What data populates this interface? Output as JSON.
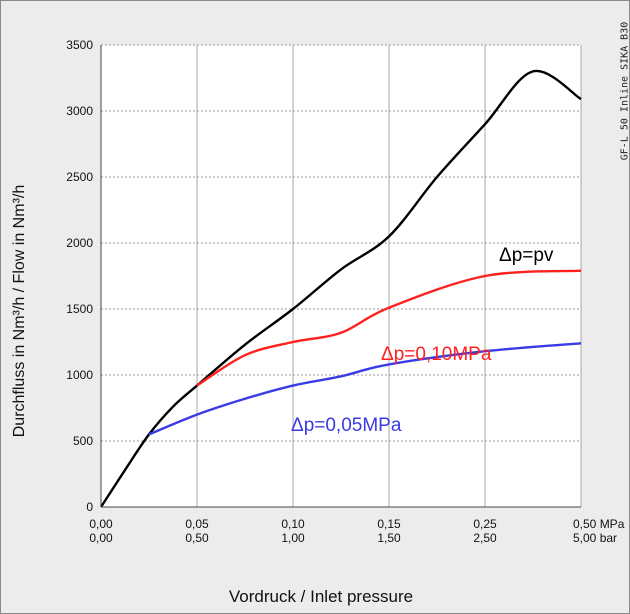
{
  "product_label": "GF-L 50 Inline SIKA B30",
  "chart_data": {
    "type": "line",
    "ylabel": "Durchfluss in Nm³/h  /  Flow in Nm³/h",
    "xlabel": "Vordruck / Inlet pressure",
    "ylim": [
      0,
      3500
    ],
    "y_ticks": [
      0,
      500,
      1000,
      1500,
      2000,
      2500,
      3000,
      3500
    ],
    "x_ticks_mpa": [
      "0,00",
      "0,05",
      "0,10",
      "0,15",
      "0,25",
      "0,50 MPa"
    ],
    "x_ticks_bar": [
      "0,00",
      "0,50",
      "1,00",
      "1,50",
      "2,50",
      "5,00 bar"
    ],
    "grid": true,
    "series": [
      {
        "name": "Δp=pv",
        "color": "#000000",
        "points": [
          [
            0,
            0
          ],
          [
            0.25,
            280
          ],
          [
            0.5,
            550
          ],
          [
            0.75,
            760
          ],
          [
            1,
            920
          ],
          [
            1.5,
            1230
          ],
          [
            2,
            1500
          ],
          [
            2.5,
            1800
          ],
          [
            3,
            2050
          ],
          [
            3.5,
            2500
          ],
          [
            4,
            2900
          ],
          [
            4.5,
            3300
          ],
          [
            5,
            3090
          ]
        ]
      },
      {
        "name": "Δp=0,10MPa",
        "color": "#ff2020",
        "points": [
          [
            1,
            920
          ],
          [
            1.5,
            1150
          ],
          [
            2,
            1250
          ],
          [
            2.5,
            1320
          ],
          [
            3,
            1510
          ],
          [
            4,
            1750
          ],
          [
            5,
            1790
          ]
        ]
      },
      {
        "name": "Δp=0,05MPa",
        "color": "#3a3ae6",
        "points": [
          [
            0.5,
            550
          ],
          [
            1,
            700
          ],
          [
            1.5,
            820
          ],
          [
            2,
            920
          ],
          [
            2.5,
            990
          ],
          [
            3,
            1080
          ],
          [
            4,
            1180
          ],
          [
            5,
            1240
          ]
        ]
      }
    ]
  }
}
